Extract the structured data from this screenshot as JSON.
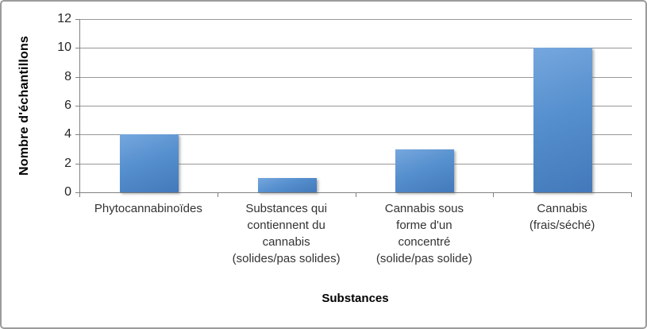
{
  "frame": {
    "background": "#ffffff",
    "border_color": "#9b9b9b"
  },
  "chart_data": {
    "type": "bar",
    "title": "",
    "categories": [
      "Phytocannabinoïdes",
      "Substances qui contiennent du cannabis (solides/pas solides)",
      "Cannabis sous forme d'un concentré (solide/pas solide)",
      "Cannabis (frais/séché)"
    ],
    "category_lines": [
      [
        "Phytocannabinoïdes"
      ],
      [
        "Substances qui",
        "contiennent du",
        "cannabis",
        "(solides/pas solides)"
      ],
      [
        "Cannabis sous",
        "forme d'un",
        "concentré",
        "(solide/pas solide)"
      ],
      [
        "Cannabis",
        "(frais/séché)"
      ]
    ],
    "values": [
      4,
      1,
      3,
      10
    ],
    "xlabel": "Substances",
    "ylabel": "Nombre d'échantillons",
    "ylim": [
      0,
      12
    ],
    "yticks": [
      0,
      2,
      4,
      6,
      8,
      10,
      12
    ],
    "grid": true,
    "legend": "none",
    "bar_color": "#4e87c7",
    "bar_gradient_light": "#76a7de",
    "bar_gradient_dark": "#4379ba",
    "axis_color": "#808080",
    "gridline_color": "#979797",
    "tick_label_color": "#262626",
    "category_label_color": "#333333"
  }
}
